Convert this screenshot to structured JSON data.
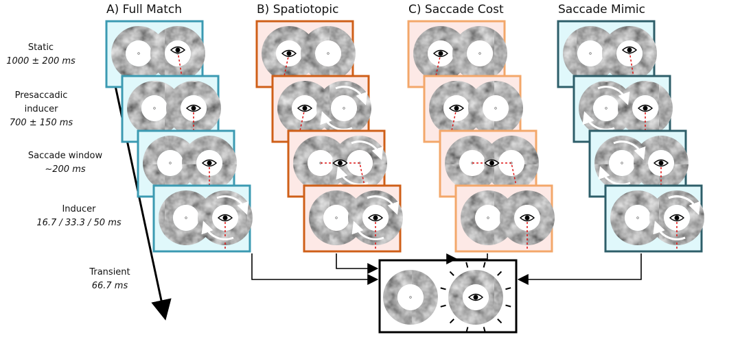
{
  "columns": [
    {
      "title": "A) Full Match"
    },
    {
      "title": "B) Spatiotopic"
    },
    {
      "title": "C) Saccade Cost"
    },
    {
      "title": "Saccade Mimic"
    }
  ],
  "timeline": [
    {
      "label": "Static",
      "duration": "1000 ± 200 ms"
    },
    {
      "label": "Presaccadic inducer",
      "duration": "700 ± 150 ms"
    },
    {
      "label": "Saccade window",
      "duration": "~200 ms"
    },
    {
      "label": "Inducer",
      "duration": "16.7 / 33.3 / 50 ms"
    },
    {
      "label": "Transient",
      "duration": "66.7 ms"
    }
  ]
}
